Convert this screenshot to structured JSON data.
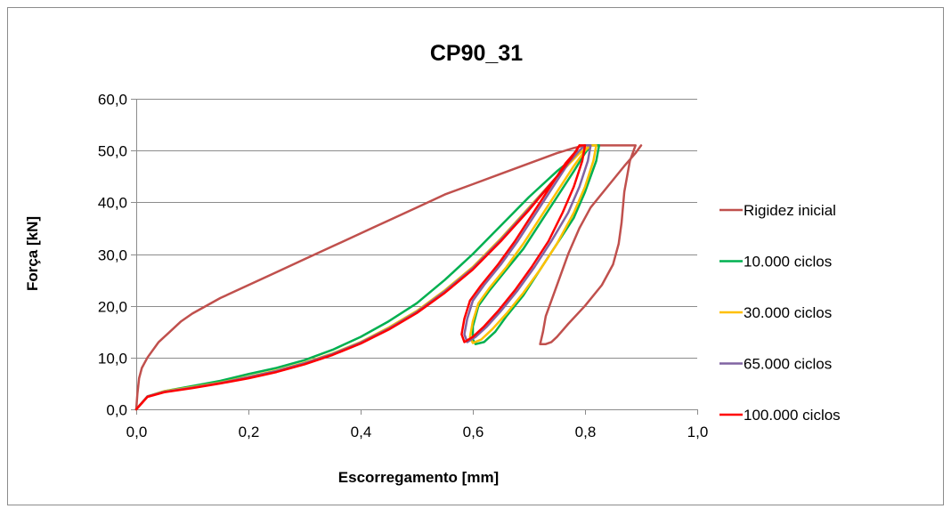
{
  "chart_data": {
    "type": "line",
    "title": "CP90_31",
    "xlabel": "Escorregamento [mm]",
    "ylabel": "Força [kN]",
    "xlim": [
      0,
      1.0
    ],
    "ylim": [
      0,
      60
    ],
    "x_ticks": [
      0.0,
      0.2,
      0.4,
      0.6,
      0.8,
      1.0
    ],
    "y_ticks": [
      0,
      10,
      20,
      30,
      40,
      50,
      60
    ],
    "x_tick_labels": [
      "0,0",
      "0,2",
      "0,4",
      "0,6",
      "0,8",
      "1,0"
    ],
    "y_tick_labels": [
      "0,0",
      "10,0",
      "20,0",
      "30,0",
      "40,0",
      "50,0",
      "60,0"
    ],
    "grid": "horizontal",
    "legend_position": "right",
    "series": [
      {
        "name": "Rigidez inicial",
        "color": "#c0504d",
        "points": [
          [
            0,
            0
          ],
          [
            0.002,
            3
          ],
          [
            0.005,
            6
          ],
          [
            0.01,
            8
          ],
          [
            0.02,
            10
          ],
          [
            0.04,
            13
          ],
          [
            0.06,
            15
          ],
          [
            0.08,
            17
          ],
          [
            0.1,
            18.5
          ],
          [
            0.15,
            21.5
          ],
          [
            0.2,
            24
          ],
          [
            0.25,
            26.5
          ],
          [
            0.3,
            29
          ],
          [
            0.35,
            31.5
          ],
          [
            0.4,
            34
          ],
          [
            0.45,
            36.5
          ],
          [
            0.5,
            39
          ],
          [
            0.55,
            41.5
          ],
          [
            0.6,
            43.5
          ],
          [
            0.65,
            45.5
          ],
          [
            0.7,
            47.5
          ],
          [
            0.75,
            49.5
          ],
          [
            0.78,
            50.5
          ],
          [
            0.8,
            51
          ],
          [
            0.85,
            51
          ],
          [
            0.89,
            51
          ],
          [
            0.88,
            48
          ],
          [
            0.87,
            42
          ],
          [
            0.865,
            36
          ],
          [
            0.86,
            32
          ],
          [
            0.85,
            28
          ],
          [
            0.83,
            24
          ],
          [
            0.8,
            20
          ],
          [
            0.77,
            16.5
          ],
          [
            0.75,
            14
          ],
          [
            0.74,
            13
          ],
          [
            0.73,
            12.6
          ],
          [
            0.72,
            12.6
          ],
          [
            0.725,
            15
          ],
          [
            0.73,
            18
          ],
          [
            0.75,
            24
          ],
          [
            0.77,
            30
          ],
          [
            0.79,
            35
          ],
          [
            0.81,
            39
          ],
          [
            0.84,
            43
          ],
          [
            0.87,
            47
          ],
          [
            0.89,
            49.5
          ],
          [
            0.9,
            51
          ]
        ]
      },
      {
        "name": "10.000 ciclos",
        "color": "#00b050",
        "points": [
          [
            0,
            0
          ],
          [
            0.02,
            2.5
          ],
          [
            0.05,
            3.5
          ],
          [
            0.1,
            4.5
          ],
          [
            0.15,
            5.5
          ],
          [
            0.2,
            6.8
          ],
          [
            0.25,
            8
          ],
          [
            0.3,
            9.5
          ],
          [
            0.35,
            11.5
          ],
          [
            0.4,
            14
          ],
          [
            0.45,
            17
          ],
          [
            0.5,
            20.5
          ],
          [
            0.55,
            25
          ],
          [
            0.6,
            30
          ],
          [
            0.65,
            35.5
          ],
          [
            0.7,
            41
          ],
          [
            0.75,
            46
          ],
          [
            0.79,
            49.5
          ],
          [
            0.81,
            51
          ],
          [
            0.825,
            51
          ],
          [
            0.82,
            48
          ],
          [
            0.8,
            42
          ],
          [
            0.78,
            37
          ],
          [
            0.75,
            32
          ],
          [
            0.72,
            27
          ],
          [
            0.69,
            22
          ],
          [
            0.66,
            18
          ],
          [
            0.64,
            15
          ],
          [
            0.62,
            13
          ],
          [
            0.605,
            12.6
          ],
          [
            0.6,
            13.5
          ],
          [
            0.6,
            16
          ],
          [
            0.61,
            20
          ],
          [
            0.63,
            23
          ],
          [
            0.66,
            27
          ],
          [
            0.69,
            31
          ],
          [
            0.72,
            36
          ],
          [
            0.75,
            41
          ],
          [
            0.78,
            46
          ],
          [
            0.8,
            49.5
          ],
          [
            0.81,
            51
          ]
        ]
      },
      {
        "name": "30.000 ciclos",
        "color": "#ffc000",
        "points": [
          [
            0,
            0
          ],
          [
            0.02,
            2.5
          ],
          [
            0.05,
            3.5
          ],
          [
            0.1,
            4.3
          ],
          [
            0.15,
            5.2
          ],
          [
            0.2,
            6.3
          ],
          [
            0.25,
            7.5
          ],
          [
            0.3,
            9
          ],
          [
            0.35,
            10.8
          ],
          [
            0.4,
            13
          ],
          [
            0.45,
            15.8
          ],
          [
            0.5,
            19
          ],
          [
            0.55,
            23
          ],
          [
            0.6,
            27.5
          ],
          [
            0.65,
            33
          ],
          [
            0.7,
            39
          ],
          [
            0.75,
            45
          ],
          [
            0.79,
            49.5
          ],
          [
            0.81,
            51
          ],
          [
            0.82,
            51
          ],
          [
            0.815,
            48
          ],
          [
            0.8,
            43
          ],
          [
            0.78,
            38
          ],
          [
            0.75,
            32
          ],
          [
            0.72,
            27
          ],
          [
            0.69,
            22.5
          ],
          [
            0.66,
            18.5
          ],
          [
            0.635,
            15.5
          ],
          [
            0.615,
            13.5
          ],
          [
            0.6,
            12.8
          ],
          [
            0.595,
            14
          ],
          [
            0.6,
            17
          ],
          [
            0.61,
            20.5
          ],
          [
            0.63,
            23.5
          ],
          [
            0.66,
            27.5
          ],
          [
            0.69,
            32
          ],
          [
            0.72,
            37
          ],
          [
            0.75,
            42
          ],
          [
            0.78,
            47
          ],
          [
            0.8,
            50
          ],
          [
            0.81,
            51
          ]
        ]
      },
      {
        "name": "65.000 ciclos",
        "color": "#8064a2",
        "points": [
          [
            0,
            0
          ],
          [
            0.02,
            2.5
          ],
          [
            0.05,
            3.4
          ],
          [
            0.1,
            4.2
          ],
          [
            0.15,
            5.1
          ],
          [
            0.2,
            6.2
          ],
          [
            0.25,
            7.4
          ],
          [
            0.3,
            8.9
          ],
          [
            0.35,
            10.7
          ],
          [
            0.4,
            12.9
          ],
          [
            0.45,
            15.6
          ],
          [
            0.5,
            18.8
          ],
          [
            0.55,
            22.8
          ],
          [
            0.6,
            27.3
          ],
          [
            0.65,
            32.8
          ],
          [
            0.7,
            38.8
          ],
          [
            0.75,
            45
          ],
          [
            0.78,
            49
          ],
          [
            0.8,
            51
          ],
          [
            0.81,
            51
          ],
          [
            0.805,
            48
          ],
          [
            0.79,
            43
          ],
          [
            0.77,
            38
          ],
          [
            0.74,
            32.5
          ],
          [
            0.71,
            27.5
          ],
          [
            0.68,
            23
          ],
          [
            0.65,
            19
          ],
          [
            0.625,
            16
          ],
          [
            0.605,
            14
          ],
          [
            0.59,
            13
          ],
          [
            0.585,
            14.5
          ],
          [
            0.59,
            17.5
          ],
          [
            0.6,
            21
          ],
          [
            0.62,
            24
          ],
          [
            0.65,
            28
          ],
          [
            0.68,
            32.5
          ],
          [
            0.71,
            37.5
          ],
          [
            0.74,
            42.5
          ],
          [
            0.77,
            47.5
          ],
          [
            0.79,
            50
          ],
          [
            0.8,
            51
          ]
        ]
      },
      {
        "name": "100.000 ciclos",
        "color": "#ff0000",
        "points": [
          [
            0,
            0
          ],
          [
            0.02,
            2.4
          ],
          [
            0.05,
            3.3
          ],
          [
            0.1,
            4.1
          ],
          [
            0.15,
            5
          ],
          [
            0.2,
            6
          ],
          [
            0.25,
            7.2
          ],
          [
            0.3,
            8.7
          ],
          [
            0.35,
            10.5
          ],
          [
            0.4,
            12.7
          ],
          [
            0.45,
            15.4
          ],
          [
            0.5,
            18.6
          ],
          [
            0.55,
            22.5
          ],
          [
            0.6,
            27
          ],
          [
            0.65,
            32.5
          ],
          [
            0.7,
            38.5
          ],
          [
            0.75,
            45
          ],
          [
            0.775,
            48.5
          ],
          [
            0.79,
            51
          ],
          [
            0.8,
            51
          ],
          [
            0.795,
            48
          ],
          [
            0.78,
            43
          ],
          [
            0.76,
            38
          ],
          [
            0.735,
            32.5
          ],
          [
            0.705,
            27.5
          ],
          [
            0.675,
            23
          ],
          [
            0.645,
            19
          ],
          [
            0.62,
            16
          ],
          [
            0.6,
            14
          ],
          [
            0.585,
            13
          ],
          [
            0.58,
            14.5
          ],
          [
            0.585,
            17.5
          ],
          [
            0.595,
            21
          ],
          [
            0.615,
            24
          ],
          [
            0.645,
            28
          ],
          [
            0.675,
            32.5
          ],
          [
            0.705,
            37.5
          ],
          [
            0.735,
            42.5
          ],
          [
            0.765,
            47.5
          ],
          [
            0.785,
            50
          ],
          [
            0.79,
            51
          ]
        ]
      }
    ]
  }
}
